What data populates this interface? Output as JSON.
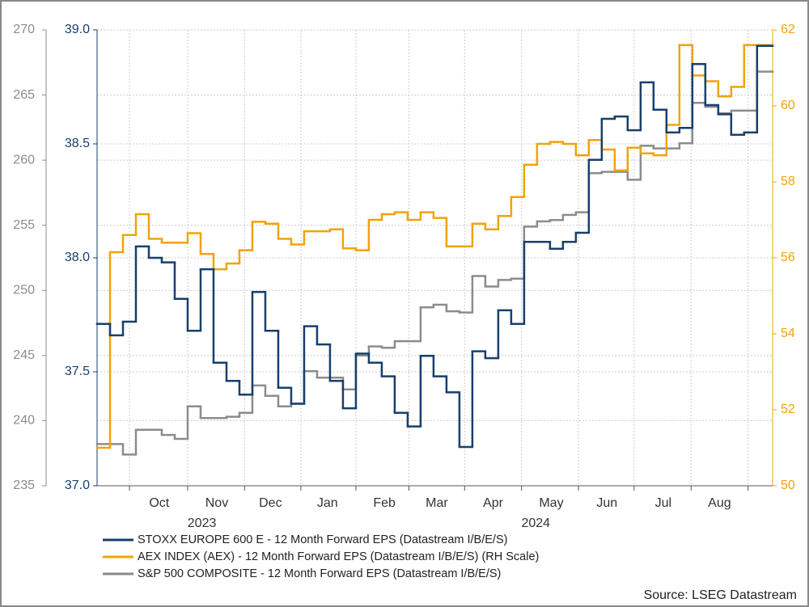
{
  "chart_data": {
    "type": "step-line",
    "x": [
      0,
      1,
      2,
      3,
      4,
      5,
      6,
      7,
      8,
      9,
      10,
      11,
      12,
      13,
      14,
      15,
      16,
      17,
      18,
      19,
      20,
      21,
      22,
      23,
      24,
      25,
      26,
      27,
      28,
      29,
      30,
      31,
      32,
      33,
      34,
      35,
      36,
      37,
      38,
      39,
      40,
      41,
      42,
      43,
      44,
      45,
      46,
      47,
      48,
      49,
      50,
      51
    ],
    "xlim": [
      0,
      52.2
    ],
    "xticks": [
      2.5,
      7,
      11.4,
      15.75,
      20,
      24.1,
      28.4,
      32.8,
      37.2,
      41.5,
      45.9,
      50.3
    ],
    "month_labels": [
      {
        "value": 4.8,
        "label": "Oct"
      },
      {
        "value": 9.25,
        "label": "Nov"
      },
      {
        "value": 13.4,
        "label": "Dec"
      },
      {
        "value": 17.8,
        "label": "Jan"
      },
      {
        "value": 22.2,
        "label": "Feb"
      },
      {
        "value": 26.25,
        "label": "Mar"
      },
      {
        "value": 30.6,
        "label": "Apr"
      },
      {
        "value": 35.1,
        "label": "May"
      },
      {
        "value": 39.4,
        "label": "Jun"
      },
      {
        "value": 43.75,
        "label": "Jul"
      },
      {
        "value": 48.1,
        "label": "Aug"
      }
    ],
    "year_labels": [
      {
        "value": 8.1,
        "label": "2023"
      },
      {
        "value": 33.9,
        "label": "2024"
      }
    ],
    "ylim": [
      37,
      39
    ],
    "yticks": [
      {
        "value": 37,
        "label": "37.0"
      },
      37.5,
      {
        "value": 38,
        "label": "38.0"
      },
      38.5,
      {
        "value": 39,
        "label": "39.0"
      }
    ],
    "y2lim": [
      50,
      62
    ],
    "y2ticks": [
      50,
      52,
      54,
      56,
      58,
      60,
      62
    ],
    "y3lim": [
      235,
      270
    ],
    "y3ticks": [
      235,
      240,
      245,
      250,
      255,
      260,
      265,
      270
    ],
    "grid": true,
    "series": [
      {
        "name": "STOXX EUROPE 600 E - 12 Month Forward EPS (Datastream I/B/E/S)",
        "color": "#173f6e",
        "axis": "y",
        "values": [
          37.71,
          37.66,
          37.72,
          38.05,
          38.0,
          37.98,
          37.82,
          37.68,
          37.95,
          37.54,
          37.46,
          37.4,
          37.85,
          37.68,
          37.43,
          37.36,
          37.7,
          37.62,
          37.46,
          37.34,
          37.58,
          37.54,
          37.48,
          37.32,
          37.26,
          37.57,
          37.48,
          37.41,
          37.17,
          37.59,
          37.56,
          37.77,
          37.71,
          38.07,
          38.07,
          38.04,
          38.07,
          38.11,
          38.43,
          38.61,
          38.62,
          38.56,
          38.77,
          38.65,
          38.55,
          38.57,
          38.85,
          38.67,
          38.63,
          38.54,
          38.55,
          38.93
        ]
      },
      {
        "name": "AEX INDEX (AEX) - 12 Month Forward EPS (Datastream I/B/E/S) (RH Scale)",
        "color": "#f0a30a",
        "axis": "y2",
        "values": [
          51.0,
          56.15,
          56.6,
          57.15,
          56.5,
          56.4,
          56.4,
          56.65,
          56.1,
          55.7,
          55.85,
          56.2,
          56.95,
          56.9,
          56.5,
          56.35,
          56.7,
          56.7,
          56.75,
          56.25,
          56.2,
          57.0,
          57.15,
          57.2,
          57.0,
          57.2,
          57.05,
          56.3,
          56.3,
          56.9,
          56.75,
          57.1,
          57.6,
          58.45,
          59.0,
          59.05,
          59.0,
          58.7,
          59.1,
          58.85,
          58.3,
          58.9,
          58.75,
          58.7,
          59.5,
          61.6,
          60.8,
          60.65,
          60.25,
          60.5,
          61.6,
          61.6
        ]
      },
      {
        "name": "S&P 500 COMPOSITE - 12 Month Forward EPS (Datastream I/B/E/S)",
        "color": "#8c8c8c",
        "axis": "y3",
        "values": [
          238.2,
          238.2,
          237.4,
          239.3,
          239.3,
          238.9,
          238.6,
          241.1,
          240.2,
          240.2,
          240.3,
          240.6,
          242.7,
          241.9,
          241.1,
          241.3,
          243.8,
          243.3,
          243.3,
          242.4,
          245.0,
          245.7,
          245.6,
          246.1,
          246.1,
          248.7,
          248.9,
          248.4,
          248.3,
          251.1,
          250.3,
          250.8,
          250.9,
          254.9,
          255.3,
          255.4,
          255.8,
          256.0,
          259.0,
          259.1,
          259.1,
          258.5,
          261.1,
          260.9,
          260.9,
          261.3,
          264.4,
          264.1,
          263.6,
          263.8,
          263.8,
          266.8
        ]
      }
    ],
    "source": "Source: LSEG Datastream"
  }
}
